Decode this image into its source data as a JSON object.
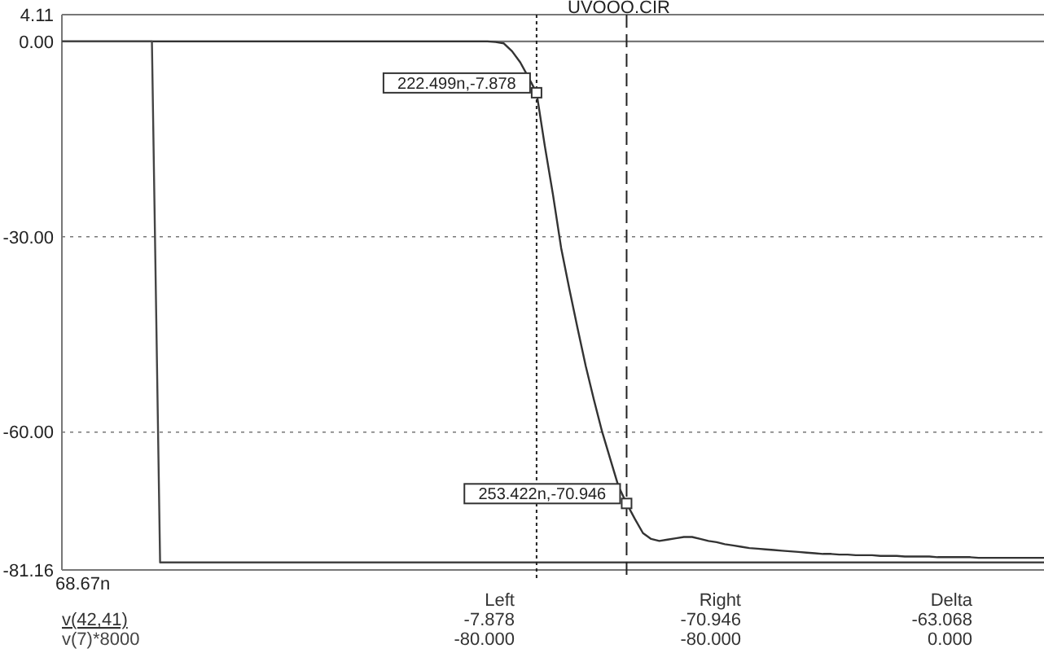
{
  "chart_data": {
    "type": "line",
    "title": "UVOOO.CIR",
    "categories": [
      null,
      null,
      null,
      null,
      null,
      null,
      null,
      null,
      null,
      null,
      null,
      null,
      null,
      null,
      null,
      null,
      null,
      null,
      null,
      null,
      null,
      null,
      null,
      null,
      null,
      null,
      null,
      null,
      null,
      null,
      null,
      null,
      null,
      null,
      null,
      null,
      null,
      null,
      null,
      null,
      null,
      null,
      null,
      null,
      null,
      null,
      null,
      null,
      null,
      null,
      null,
      null,
      null,
      null,
      null,
      null,
      null,
      null,
      null,
      null,
      null,
      null,
      null,
      null,
      null,
      null,
      null,
      null,
      null,
      null,
      null,
      null,
      null,
      null,
      null,
      null,
      null,
      null,
      null,
      null,
      null,
      null,
      null,
      null,
      null,
      null,
      null,
      null,
      null,
      null,
      null,
      null,
      null,
      null,
      null,
      null,
      null,
      null,
      null,
      null,
      null,
      null,
      null,
      null,
      null,
      null,
      null,
      null,
      null,
      null,
      null,
      null,
      null,
      null,
      null,
      null,
      null,
      null,
      null,
      null,
      null
    ],
    "ylim": [
      -81.16,
      4.11
    ],
    "yticks": [
      {
        "value": 4.11,
        "label": "4.11"
      },
      {
        "value": 0,
        "label": "0.00"
      },
      {
        "value": -30,
        "label": "-30.00"
      },
      {
        "value": -60,
        "label": "-60.00"
      },
      {
        "value": -81.16,
        "label": "-81.16"
      }
    ],
    "grid": "y",
    "legend": false,
    "marker": "none",
    "line_style": "solid",
    "series": [
      {
        "name": "v(42,41)",
        "color": "#333333",
        "values": [
          0,
          0,
          0,
          0,
          0,
          0,
          0,
          0,
          0,
          0,
          0,
          0,
          0,
          0,
          0,
          0,
          0,
          0,
          0,
          0,
          0,
          0,
          0,
          0,
          0,
          0,
          0,
          0,
          0,
          0,
          0,
          0,
          0,
          0,
          0,
          0,
          0,
          0,
          0,
          0,
          0,
          0,
          0,
          0,
          0,
          0,
          0,
          0,
          0,
          0,
          0,
          0,
          0,
          -0.1,
          -0.3,
          -1.5,
          -3.2,
          -5.5,
          -7.878,
          -16,
          -23.5,
          -31.7,
          -38,
          -44,
          -49.8,
          -55,
          -59.9,
          -64.1,
          -68.3,
          -70.946,
          -73.3,
          -75.5,
          -76.4,
          -76.7,
          -76.5,
          -76.3,
          -76.1,
          -76.1,
          -76.4,
          -76.7,
          -76.9,
          -77.2,
          -77.4,
          -77.6,
          -77.8,
          -77.9,
          -78,
          -78.1,
          -78.2,
          -78.3,
          -78.4,
          -78.5,
          -78.6,
          -78.7,
          -78.7,
          -78.8,
          -78.8,
          -78.9,
          -78.9,
          -78.9,
          -79,
          -79,
          -79,
          -79.1,
          -79.1,
          -79.1,
          -79.1,
          -79.2,
          -79.2,
          -79.2,
          -79.2,
          -79.2,
          -79.3,
          -79.3,
          -79.3,
          -79.3,
          -79.3,
          -79.3,
          -79.3,
          -79.3,
          -79.3
        ],
        "value_labels": [
          null,
          null,
          null,
          null,
          null,
          null,
          null,
          null,
          null,
          null,
          null,
          null,
          null,
          null,
          null,
          null,
          null,
          null,
          null,
          null,
          null,
          null,
          null,
          null,
          null,
          null,
          null,
          null,
          null,
          null,
          null,
          null,
          null,
          null,
          null,
          null,
          null,
          null,
          null,
          null,
          null,
          null,
          null,
          null,
          null,
          null,
          null,
          null,
          null,
          null,
          null,
          null,
          null,
          null,
          null,
          null,
          null,
          null,
          "222.499n,-7.878",
          null,
          null,
          null,
          null,
          null,
          null,
          null,
          null,
          null,
          null,
          "253.422n,-70.946",
          null,
          null,
          null,
          null,
          null,
          null,
          null,
          null,
          null,
          null,
          null,
          null,
          null,
          null,
          null,
          null,
          null,
          null,
          null,
          null,
          null,
          null,
          null,
          null,
          null,
          null,
          null,
          null,
          null,
          null,
          null,
          null,
          null,
          null,
          null,
          null,
          null,
          null,
          null,
          null,
          null,
          null,
          null,
          null,
          null,
          null,
          null,
          null,
          null,
          null,
          null
        ]
      },
      {
        "name": "v(7)*8000",
        "color": "#444444",
        "values": [
          0,
          0,
          0,
          0,
          0,
          0,
          0,
          0,
          0,
          0,
          0,
          0,
          -80,
          -80,
          -80,
          -80,
          -80,
          -80,
          -80,
          -80,
          -80,
          -80,
          -80,
          -80,
          -80,
          -80,
          -80,
          -80,
          -80,
          -80,
          -80,
          -80,
          -80,
          -80,
          -80,
          -80,
          -80,
          -80,
          -80,
          -80,
          -80,
          -80,
          -80,
          -80,
          -80,
          -80,
          -80,
          -80,
          -80,
          -80,
          -80,
          -80,
          -80,
          -80,
          -80,
          -80,
          -80,
          -80,
          -80,
          -80,
          -80,
          -80,
          -80,
          -80,
          -80,
          -80,
          -80,
          -80,
          -80,
          -80,
          -80,
          -80,
          -80,
          -80,
          -80,
          -80,
          -80,
          -80,
          -80,
          -80,
          -80,
          -80,
          -80,
          -80,
          -80,
          -80,
          -80,
          -80,
          -80,
          -80,
          -80,
          -80,
          -80,
          -80,
          -80,
          -80,
          -80,
          -80,
          -80,
          -80,
          -80,
          -80,
          -80,
          -80,
          -80,
          -80,
          -80,
          -80,
          -80,
          -80,
          -80,
          -80,
          -80,
          -80,
          -80,
          -80,
          -80,
          -80,
          -80,
          -80,
          -80
        ]
      }
    ],
    "annotations": [
      "68.67n",
      "Left",
      "Right",
      "Delta",
      "-7.878",
      "-70.946",
      "-63.068",
      "-80.000",
      "-80.000",
      "0.000"
    ]
  }
}
